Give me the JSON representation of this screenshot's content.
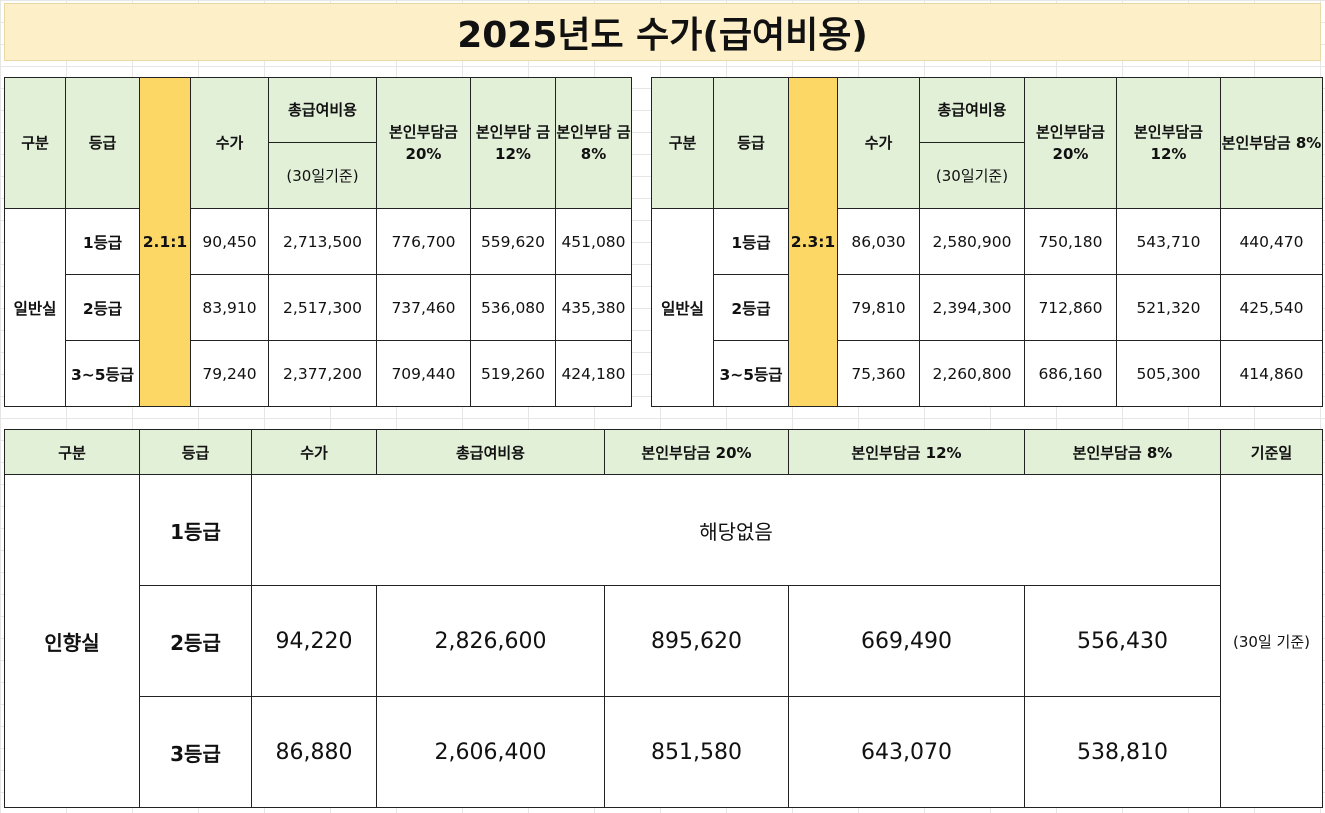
{
  "title": "2025년도 수가(급여비용)",
  "table_left": {
    "headers": {
      "category": "구분",
      "grade": "등급",
      "fee": "수가",
      "total": "총급여비용",
      "total_basis": "(30일기준)",
      "copay20": "본인부담금 20%",
      "copay12": "본인부담 금 12%",
      "copay8": "본인부담 금 8%"
    },
    "category": "일반실",
    "ratio": "2.1:1",
    "rows": [
      {
        "grade": "1등급",
        "fee": "90,450",
        "total": "2,713,500",
        "copay20": "776,700",
        "copay12": "559,620",
        "copay8": "451,080"
      },
      {
        "grade": "2등급",
        "fee": "83,910",
        "total": "2,517,300",
        "copay20": "737,460",
        "copay12": "536,080",
        "copay8": "435,380"
      },
      {
        "grade": "3~5등급",
        "fee": "79,240",
        "total": "2,377,200",
        "copay20": "709,440",
        "copay12": "519,260",
        "copay8": "424,180"
      }
    ]
  },
  "table_right": {
    "headers": {
      "category": "구분",
      "grade": "등급",
      "fee": "수가",
      "total": "총급여비용",
      "total_basis": "(30일기준)",
      "copay20": "본인부담금 20%",
      "copay12": "본인부담금 12%",
      "copay8": "본인부담금 8%"
    },
    "category": "일반실",
    "ratio": "2.3:1",
    "rows": [
      {
        "grade": "1등급",
        "fee": "86,030",
        "total": "2,580,900",
        "copay20": "750,180",
        "copay12": "543,710",
        "copay8": "440,470"
      },
      {
        "grade": "2등급",
        "fee": "79,810",
        "total": "2,394,300",
        "copay20": "712,860",
        "copay12": "521,320",
        "copay8": "425,540"
      },
      {
        "grade": "3~5등급",
        "fee": "75,360",
        "total": "2,260,800",
        "copay20": "686,160",
        "copay12": "505,300",
        "copay8": "414,860"
      }
    ]
  },
  "table_bottom": {
    "headers": {
      "category": "구분",
      "grade": "등급",
      "fee": "수가",
      "total": "총급여비용",
      "copay20": "본인부담금 20%",
      "copay12": "본인부담금 12%",
      "copay8": "본인부담금 8%",
      "basis": "기준일"
    },
    "category": "인향실",
    "not_applicable": "해당없음",
    "basis_value": "(30일 기준)",
    "rows": [
      {
        "grade": "1등급"
      },
      {
        "grade": "2등급",
        "fee": "94,220",
        "total": "2,826,600",
        "copay20": "895,620",
        "copay12": "669,490",
        "copay8": "556,430"
      },
      {
        "grade": "3등급",
        "fee": "86,880",
        "total": "2,606,400",
        "copay20": "851,580",
        "copay12": "643,070",
        "copay8": "538,810"
      }
    ]
  }
}
